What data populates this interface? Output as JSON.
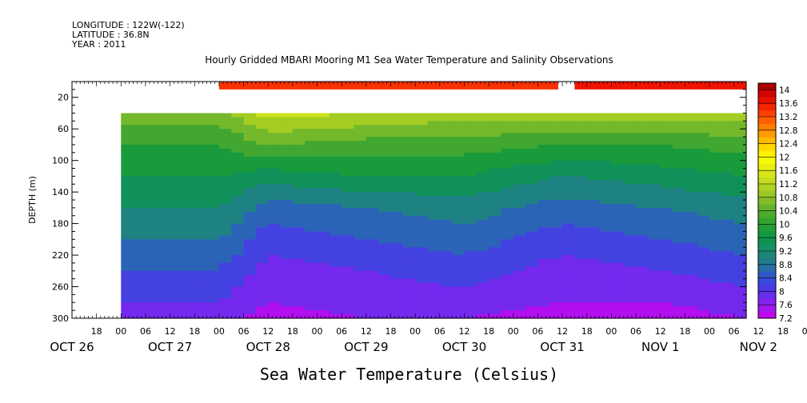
{
  "header": {
    "longitude": "LONGITUDE : 122W(-122)",
    "latitude": "LATITUDE : 36.8N",
    "year": "YEAR : 2011"
  },
  "chart_data": {
    "type": "heatmap",
    "title": "Hourly Gridded MBARI Mooring M1 Sea Water Temperature and Salinity Observations",
    "xlabel": "Sea Water Temperature (Celsius)",
    "ylabel": "DEPTH (m)",
    "x_start": "OCT 26 12:00",
    "x_end": "NOV 2 09:00",
    "ylim": [
      300,
      0
    ],
    "y_ticks": [
      20,
      60,
      100,
      140,
      180,
      220,
      260,
      300
    ],
    "x_hour_ticks": [
      "18",
      "00",
      "06",
      "12",
      "18",
      "00",
      "06",
      "12",
      "18",
      "00",
      "06",
      "12",
      "18",
      "00",
      "06",
      "12",
      "18",
      "00",
      "06",
      "12",
      "18",
      "00",
      "06",
      "12",
      "18",
      "00",
      "06",
      "12",
      "18",
      "00",
      "06"
    ],
    "x_date_labels": [
      "OCT 26",
      "OCT 27",
      "OCT 28",
      "OCT 29",
      "OCT 30",
      "OCT 31",
      "NOV  1",
      "NOV  2"
    ],
    "colorbar": {
      "min": 7.2,
      "max": 14.2,
      "tick_labels": [
        "14",
        "13.6",
        "13.2",
        "12.8",
        "12.4",
        "12",
        "11.6",
        "11.2",
        "10.8",
        "10.4",
        "10",
        "9.6",
        "9.2",
        "8.8",
        "8.4",
        "8",
        "7.6",
        "7.2"
      ]
    },
    "surface_band": {
      "depth_range": [
        0,
        10
      ],
      "segments": [
        {
          "start": "OCT 28 00:00",
          "end": "OCT 31 11:00",
          "temperature": 13.4
        },
        {
          "start": "OCT 31 15:00",
          "end": "NOV 2 09:00",
          "temperature": 13.6
        }
      ]
    },
    "data_start": "OCT 27 00:00",
    "profile_top_depth": 40,
    "profiles": [
      {
        "time": "OCT 27 00:00",
        "depth": [
          40,
          80,
          120,
          160,
          200,
          240,
          280,
          300
        ],
        "temperature": [
          10.6,
          10.0,
          9.6,
          9.2,
          8.8,
          8.4,
          8.0,
          7.8
        ]
      },
      {
        "time": "OCT 28 00:00",
        "depth": [
          40,
          80,
          120,
          160,
          200,
          240,
          280,
          300
        ],
        "temperature": [
          10.6,
          10.0,
          9.6,
          9.2,
          8.8,
          8.4,
          8.0,
          7.8
        ]
      },
      {
        "time": "OCT 28 12:00",
        "depth": [
          40,
          80,
          120,
          160,
          200,
          240,
          280,
          300
        ],
        "temperature": [
          11.4,
          10.4,
          9.4,
          8.6,
          8.2,
          7.8,
          7.6,
          7.4
        ]
      },
      {
        "time": "OCT 29 12:00",
        "depth": [
          40,
          80,
          120,
          160,
          200,
          240,
          280,
          300
        ],
        "temperature": [
          11.2,
          10.2,
          9.6,
          8.8,
          8.4,
          8.0,
          7.8,
          7.6
        ]
      },
      {
        "time": "OCT 30 12:00",
        "depth": [
          40,
          80,
          120,
          160,
          200,
          240,
          280,
          300
        ],
        "temperature": [
          11.0,
          10.2,
          9.6,
          9.0,
          8.6,
          8.2,
          7.8,
          7.6
        ]
      },
      {
        "time": "OCT 31 12:00",
        "depth": [
          40,
          80,
          120,
          160,
          200,
          240,
          280,
          300
        ],
        "temperature": [
          11.0,
          10.0,
          9.2,
          8.6,
          8.2,
          7.8,
          7.6,
          7.4
        ]
      },
      {
        "time": "NOV 1 12:00",
        "depth": [
          40,
          80,
          120,
          160,
          200,
          240,
          280,
          300
        ],
        "temperature": [
          11.0,
          10.0,
          9.4,
          8.8,
          8.4,
          8.0,
          7.6,
          7.4
        ]
      },
      {
        "time": "NOV 2 09:00",
        "depth": [
          40,
          80,
          120,
          160,
          200,
          240,
          280,
          300
        ],
        "temperature": [
          11.0,
          10.2,
          9.6,
          9.0,
          8.6,
          8.2,
          7.8,
          7.6
        ]
      }
    ]
  }
}
